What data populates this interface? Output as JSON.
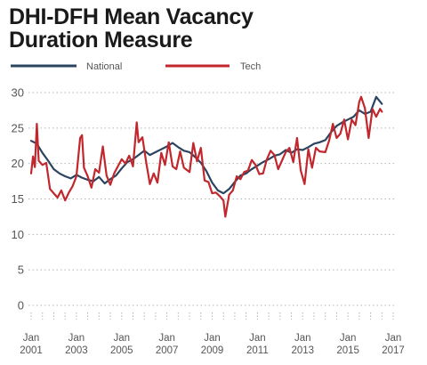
{
  "chart_data": {
    "type": "line",
    "title_lines": [
      "DHI-DFH Mean Vacancy",
      "Duration Measure"
    ],
    "xlabel": "",
    "ylabel": "",
    "x_start": "2001-01",
    "x_end": "2017-01",
    "ylim": [
      0,
      30
    ],
    "y_ticks": [
      0,
      5,
      10,
      15,
      20,
      25,
      30
    ],
    "x_tick_labels": [
      {
        "month": "Jan",
        "year": "2001"
      },
      {
        "month": "Jan",
        "year": "2003"
      },
      {
        "month": "Jan",
        "year": "2005"
      },
      {
        "month": "Jan",
        "year": "2007"
      },
      {
        "month": "Jan",
        "year": "2009"
      },
      {
        "month": "Jan",
        "year": "2011"
      },
      {
        "month": "Jan",
        "year": "2013"
      },
      {
        "month": "Jan",
        "year": "2015"
      },
      {
        "month": "Jan",
        "year": "2017"
      }
    ],
    "grid": "horizontal dotted",
    "legend_position": "top",
    "series": [
      {
        "name": "National",
        "color": "#2b4460",
        "points": [
          [
            "2001-01",
            23.2
          ],
          [
            "2001-04",
            22.8
          ],
          [
            "2001-07",
            21.5
          ],
          [
            "2001-10",
            20.4
          ],
          [
            "2002-01",
            19.2
          ],
          [
            "2002-04",
            18.6
          ],
          [
            "2002-07",
            18.2
          ],
          [
            "2002-10",
            17.9
          ],
          [
            "2003-01",
            18.4
          ],
          [
            "2003-04",
            18.0
          ],
          [
            "2003-07",
            17.7
          ],
          [
            "2003-10",
            17.5
          ],
          [
            "2004-01",
            18.1
          ],
          [
            "2004-04",
            17.2
          ],
          [
            "2004-07",
            17.8
          ],
          [
            "2004-10",
            18.3
          ],
          [
            "2005-01",
            19.3
          ],
          [
            "2005-04",
            20.2
          ],
          [
            "2005-07",
            20.6
          ],
          [
            "2005-10",
            21.2
          ],
          [
            "2006-01",
            21.8
          ],
          [
            "2006-04",
            21.2
          ],
          [
            "2006-07",
            21.6
          ],
          [
            "2006-10",
            22.0
          ],
          [
            "2007-01",
            22.4
          ],
          [
            "2007-04",
            22.9
          ],
          [
            "2007-07",
            22.3
          ],
          [
            "2007-10",
            21.8
          ],
          [
            "2008-01",
            21.6
          ],
          [
            "2008-04",
            20.9
          ],
          [
            "2008-07",
            20.1
          ],
          [
            "2008-10",
            18.9
          ],
          [
            "2009-01",
            17.3
          ],
          [
            "2009-04",
            16.2
          ],
          [
            "2009-07",
            15.8
          ],
          [
            "2009-10",
            16.4
          ],
          [
            "2010-01",
            17.4
          ],
          [
            "2010-04",
            18.3
          ],
          [
            "2010-07",
            18.6
          ],
          [
            "2010-10",
            19.2
          ],
          [
            "2011-01",
            19.7
          ],
          [
            "2011-04",
            20.2
          ],
          [
            "2011-07",
            20.6
          ],
          [
            "2011-10",
            21.1
          ],
          [
            "2012-01",
            21.3
          ],
          [
            "2012-04",
            21.9
          ],
          [
            "2012-07",
            21.5
          ],
          [
            "2012-10",
            22.0
          ],
          [
            "2013-01",
            21.9
          ],
          [
            "2013-04",
            22.3
          ],
          [
            "2013-07",
            22.8
          ],
          [
            "2013-10",
            23.0
          ],
          [
            "2014-01",
            23.3
          ],
          [
            "2014-04",
            24.4
          ],
          [
            "2014-07",
            25.3
          ],
          [
            "2014-10",
            25.8
          ],
          [
            "2015-01",
            26.2
          ],
          [
            "2015-04",
            26.6
          ],
          [
            "2015-07",
            27.5
          ],
          [
            "2015-10",
            27.0
          ],
          [
            "2016-01",
            27.3
          ],
          [
            "2016-04",
            29.4
          ],
          [
            "2016-07",
            28.4
          ]
        ]
      },
      {
        "name": "Tech",
        "color": "#c1272d",
        "points": [
          [
            "2001-01",
            18.6
          ],
          [
            "2001-02",
            21.0
          ],
          [
            "2001-03",
            19.5
          ],
          [
            "2001-04",
            25.6
          ],
          [
            "2001-05",
            20.4
          ],
          [
            "2001-07",
            19.8
          ],
          [
            "2001-09",
            20.1
          ],
          [
            "2001-11",
            16.4
          ],
          [
            "2002-01",
            15.8
          ],
          [
            "2002-03",
            15.2
          ],
          [
            "2002-05",
            16.2
          ],
          [
            "2002-07",
            14.8
          ],
          [
            "2002-09",
            15.9
          ],
          [
            "2002-11",
            16.8
          ],
          [
            "2003-01",
            18.2
          ],
          [
            "2003-03",
            23.6
          ],
          [
            "2003-04",
            24.0
          ],
          [
            "2003-05",
            19.4
          ],
          [
            "2003-07",
            18.2
          ],
          [
            "2003-09",
            16.6
          ],
          [
            "2003-11",
            19.2
          ],
          [
            "2004-01",
            18.7
          ],
          [
            "2004-03",
            22.4
          ],
          [
            "2004-05",
            18.3
          ],
          [
            "2004-07",
            17.0
          ],
          [
            "2004-09",
            18.6
          ],
          [
            "2004-11",
            19.6
          ],
          [
            "2005-01",
            20.6
          ],
          [
            "2005-03",
            20.0
          ],
          [
            "2005-05",
            21.1
          ],
          [
            "2005-07",
            19.6
          ],
          [
            "2005-09",
            25.8
          ],
          [
            "2005-10",
            23.0
          ],
          [
            "2005-12",
            23.7
          ],
          [
            "2006-02",
            20.2
          ],
          [
            "2006-04",
            17.1
          ],
          [
            "2006-06",
            18.6
          ],
          [
            "2006-08",
            17.3
          ],
          [
            "2006-10",
            21.5
          ],
          [
            "2006-12",
            19.8
          ],
          [
            "2007-02",
            23.0
          ],
          [
            "2007-04",
            19.6
          ],
          [
            "2007-06",
            19.2
          ],
          [
            "2007-08",
            21.7
          ],
          [
            "2007-10",
            19.4
          ],
          [
            "2008-01",
            18.8
          ],
          [
            "2008-03",
            22.9
          ],
          [
            "2008-05",
            20.3
          ],
          [
            "2008-07",
            22.2
          ],
          [
            "2008-09",
            17.6
          ],
          [
            "2008-11",
            17.4
          ],
          [
            "2009-01",
            15.8
          ],
          [
            "2009-03",
            15.9
          ],
          [
            "2009-05",
            15.4
          ],
          [
            "2009-07",
            14.8
          ],
          [
            "2009-08",
            12.5
          ],
          [
            "2009-10",
            15.6
          ],
          [
            "2009-12",
            16.2
          ],
          [
            "2010-02",
            18.2
          ],
          [
            "2010-04",
            17.8
          ],
          [
            "2010-06",
            18.8
          ],
          [
            "2010-08",
            19.0
          ],
          [
            "2010-10",
            20.5
          ],
          [
            "2010-12",
            19.8
          ],
          [
            "2011-02",
            18.5
          ],
          [
            "2011-04",
            18.6
          ],
          [
            "2011-06",
            20.6
          ],
          [
            "2011-08",
            21.8
          ],
          [
            "2011-10",
            21.2
          ],
          [
            "2011-12",
            19.2
          ],
          [
            "2012-02",
            20.4
          ],
          [
            "2012-04",
            21.6
          ],
          [
            "2012-06",
            22.2
          ],
          [
            "2012-08",
            20.2
          ],
          [
            "2012-10",
            23.6
          ],
          [
            "2012-12",
            19.0
          ],
          [
            "2013-02",
            17.1
          ],
          [
            "2013-04",
            22.0
          ],
          [
            "2013-06",
            19.4
          ],
          [
            "2013-08",
            22.2
          ],
          [
            "2013-10",
            21.7
          ],
          [
            "2014-01",
            21.6
          ],
          [
            "2014-03",
            23.2
          ],
          [
            "2014-05",
            25.6
          ],
          [
            "2014-07",
            23.6
          ],
          [
            "2014-09",
            24.2
          ],
          [
            "2014-11",
            26.2
          ],
          [
            "2015-01",
            23.4
          ],
          [
            "2015-03",
            26.2
          ],
          [
            "2015-05",
            25.4
          ],
          [
            "2015-07",
            28.7
          ],
          [
            "2015-08",
            29.4
          ],
          [
            "2015-10",
            27.8
          ],
          [
            "2015-12",
            23.6
          ],
          [
            "2016-02",
            27.7
          ],
          [
            "2016-04",
            26.6
          ],
          [
            "2016-06",
            27.7
          ],
          [
            "2016-07",
            27.3
          ]
        ]
      }
    ]
  }
}
